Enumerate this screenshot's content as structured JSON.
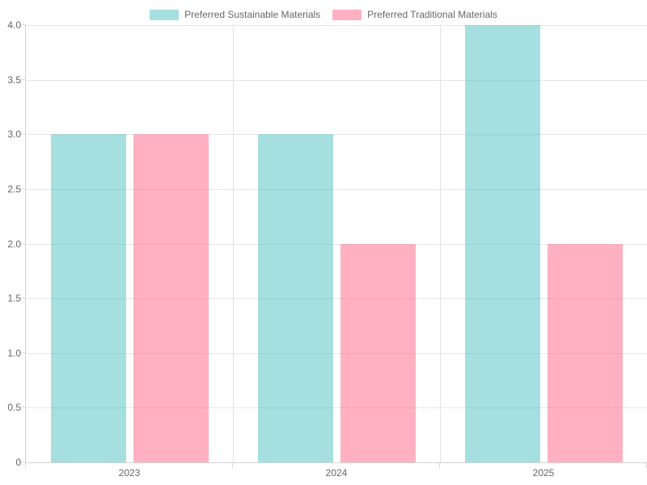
{
  "legend": {
    "items": [
      {
        "label": "Preferred Sustainable Materials",
        "swatch_color": "rgba(75,192,192,0.5)"
      },
      {
        "label": "Preferred Traditional Materials",
        "swatch_color": "rgba(255,99,132,0.5)"
      }
    ]
  },
  "chart_data": {
    "type": "bar",
    "title": "",
    "categories": [
      "2023",
      "2024",
      "2025"
    ],
    "series": [
      {
        "name": "Preferred Sustainable Materials",
        "values": [
          3,
          3,
          4
        ],
        "fill_color": "rgba(75,192,192,0.5)"
      },
      {
        "name": "Preferred Traditional Materials",
        "values": [
          3,
          2,
          2
        ],
        "fill_color": "rgba(255,99,132,0.5)"
      }
    ],
    "xlabel": "",
    "ylabel": "",
    "ylim": [
      0,
      4
    ],
    "ytick_step": 0.5,
    "ytick_labels": [
      "0",
      "0.5",
      "1.0",
      "1.5",
      "2.0",
      "2.5",
      "3.0",
      "3.5",
      "4.0"
    ],
    "legend_position": "top-center",
    "grid": true,
    "vertical_gridlines_at_category_boundaries": true
  },
  "colors": {
    "background": "#ffffff",
    "grid_line": "#e5e5e5",
    "axis_line": "#d4d4d4",
    "tick_text": "#666666",
    "legend_text": "#666666",
    "series_sustainable": "#4bc0c0",
    "series_traditional": "#ff6384"
  }
}
